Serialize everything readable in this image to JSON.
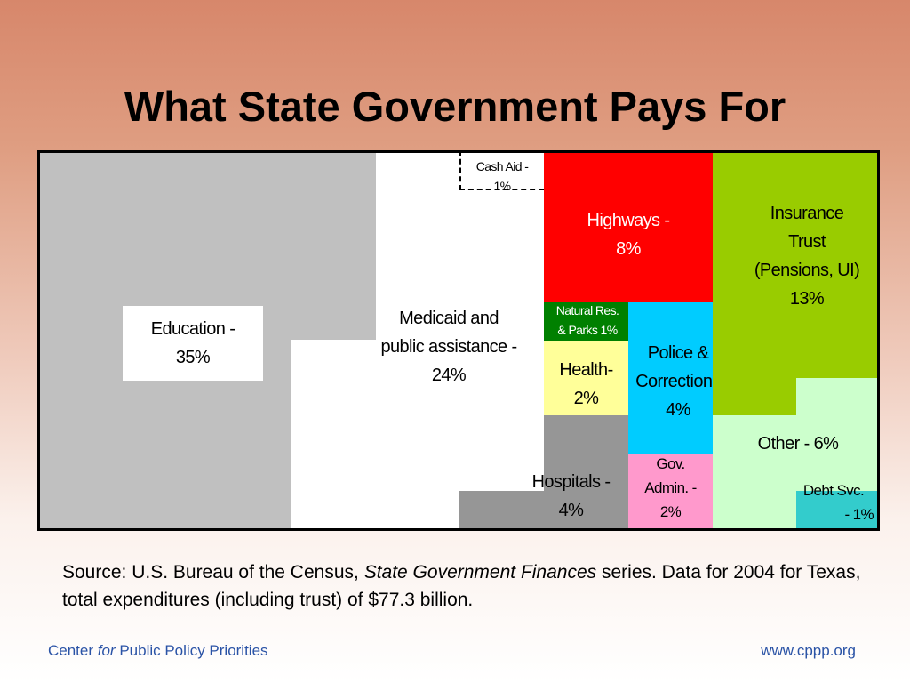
{
  "title": "What State Government Pays For",
  "chart": {
    "education": {
      "line1": "Education -",
      "line2": "35%"
    },
    "medicaid": {
      "line1": "Medicaid and",
      "line2": "public assistance -",
      "line3": "24%"
    },
    "cash_aid": {
      "line1": "Cash Aid -",
      "line2": "1%"
    },
    "highways": {
      "line1": "Highways -",
      "line2": "8%"
    },
    "insurance": {
      "line1": "Insurance",
      "line2": "Trust",
      "line3": "(Pensions, UI)",
      "line4": "13%"
    },
    "natural": {
      "line1": "Natural Res.",
      "line2": "&  Parks 1%"
    },
    "health": {
      "line1": "Health-",
      "line2": "2%"
    },
    "police": {
      "line1": "Police &",
      "line2": "Corrections",
      "line3": "4%"
    },
    "other": {
      "line1": "Other - 6%"
    },
    "hospitals": {
      "line1": "Hospitals -",
      "line2": "4%"
    },
    "gov_admin": {
      "line1": "Gov.",
      "line2": "Admin. -",
      "line3": "2%"
    },
    "debt": {
      "line1": "Debt Svc.",
      "line2": "- 1%"
    }
  },
  "colors": {
    "education": "#c0c0c0",
    "medicaid": "#ffffff",
    "highways": "#ff0000",
    "insurance": "#99cc00",
    "natural": "#008000",
    "health": "#ffff99",
    "police": "#00ccff",
    "other": "#ccffcc",
    "hospitals": "#969696",
    "gov_admin": "#ff99cc",
    "debt": "#33cccc"
  },
  "source": {
    "prefix": "Source: U.S. Bureau of the Census, ",
    "italic": "State Government Finances",
    "suffix": " series. Data for 2004 for Texas, total expenditures (including trust) of $77.3 billion."
  },
  "footer": {
    "left_a": "Center ",
    "left_b": "for",
    "left_c": " Public Policy Priorities",
    "right": "www.cppp.org"
  }
}
